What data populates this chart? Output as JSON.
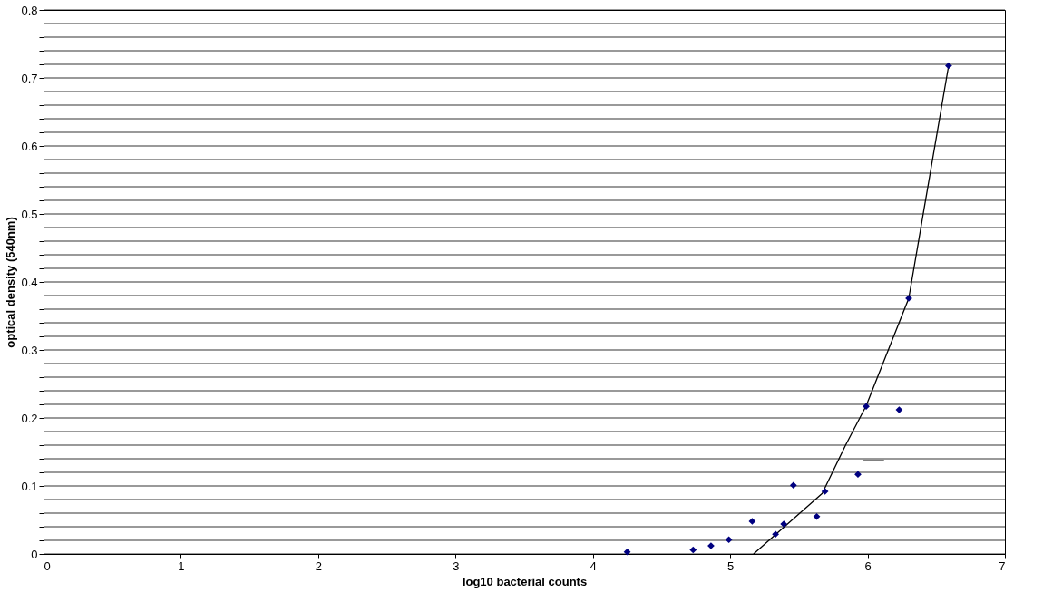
{
  "chart_data": {
    "type": "scatter",
    "xlabel": "log10 bacterial counts",
    "ylabel": "optical density (540nm)",
    "xlim": [
      0,
      7
    ],
    "xticks": [
      0,
      1,
      2,
      3,
      4,
      5,
      6,
      7
    ],
    "ylim": [
      0,
      0.8
    ],
    "yticks": [
      0,
      {
        "value": 0.02,
        "label": null
      },
      {
        "value": 0.04,
        "label": null
      },
      {
        "value": 0.06,
        "label": null
      },
      {
        "value": 0.08,
        "label": null
      },
      0.1,
      {
        "value": 0.12,
        "label": null
      },
      {
        "value": 0.14,
        "label": null
      },
      {
        "value": 0.16,
        "label": null
      },
      {
        "value": 0.18,
        "label": null
      },
      0.2,
      {
        "value": 0.22,
        "label": null
      },
      {
        "value": 0.24,
        "label": null
      },
      {
        "value": 0.26,
        "label": null
      },
      {
        "value": 0.28,
        "label": null
      },
      0.3,
      {
        "value": 0.32,
        "label": null
      },
      {
        "value": 0.34,
        "label": null
      },
      {
        "value": 0.36,
        "label": null
      },
      {
        "value": 0.38,
        "label": null
      },
      0.4,
      {
        "value": 0.42,
        "label": null
      },
      {
        "value": 0.44,
        "label": null
      },
      {
        "value": 0.46,
        "label": null
      },
      {
        "value": 0.48,
        "label": null
      },
      0.5,
      {
        "value": 0.52,
        "label": null
      },
      {
        "value": 0.54,
        "label": null
      },
      {
        "value": 0.56,
        "label": null
      },
      {
        "value": 0.58,
        "label": null
      },
      0.6,
      {
        "value": 0.62,
        "label": null
      },
      {
        "value": 0.64,
        "label": null
      },
      {
        "value": 0.66,
        "label": null
      },
      {
        "value": 0.68,
        "label": null
      },
      0.7,
      {
        "value": 0.72,
        "label": null
      },
      {
        "value": 0.74,
        "label": null
      },
      {
        "value": 0.76,
        "label": null
      },
      {
        "value": 0.78,
        "label": null
      },
      0.8
    ],
    "grid": "y",
    "series": [
      {
        "type": "line",
        "color": "#000000",
        "line_style": "solid",
        "marker": "none",
        "x": [
          5.17,
          5.67,
          5.84,
          5.99,
          6.3,
          6.59
        ],
        "values": [
          0,
          0.089,
          0.16,
          0.218,
          0.376,
          0.718
        ]
      },
      {
        "type": "line",
        "color": "#808080",
        "line_style": "solid",
        "marker": "none",
        "x": [
          5.97,
          6.12
        ],
        "values": [
          0.138,
          0.138
        ]
      },
      {
        "color": "#000080",
        "marker": "diamond",
        "x": [
          4.25,
          4.73,
          4.86,
          4.99,
          5.16,
          5.33,
          5.39,
          5.46,
          5.63,
          5.69,
          5.93,
          5.99,
          6.23,
          6.3,
          6.59
        ],
        "values": [
          0.003,
          0.006,
          0.012,
          0.021,
          0.048,
          0.029,
          0.044,
          0.101,
          0.055,
          0.092,
          0.117,
          0.217,
          0.212,
          0.376,
          0.718
        ]
      }
    ]
  }
}
